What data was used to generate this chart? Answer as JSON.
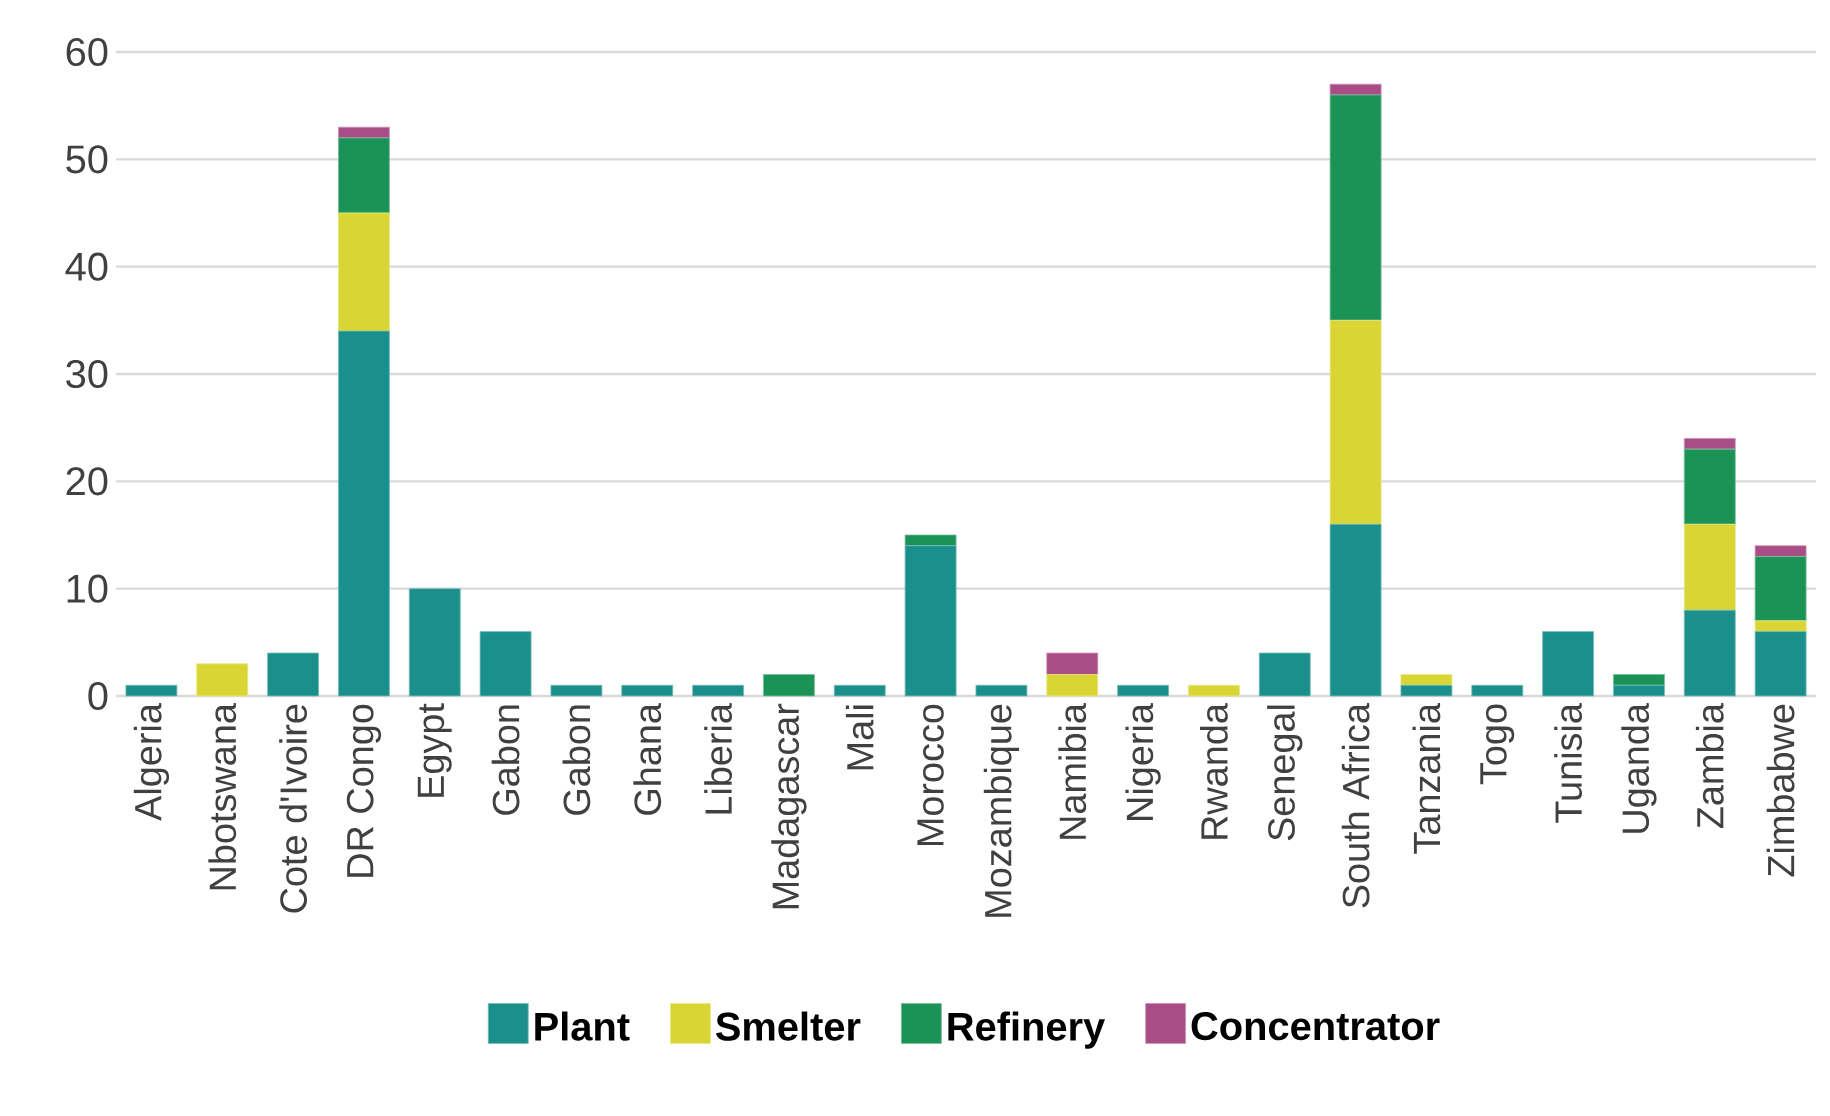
{
  "chart_data": {
    "type": "bar",
    "stacked": true,
    "categories": [
      "Algeria",
      "Nbotswana",
      "Cote d'Ivoire",
      "DR Congo",
      "Egypt",
      "Gabon",
      "Gabon",
      "Ghana",
      "Liberia",
      "Madagascar",
      "Mali",
      "Morocco",
      "Mozambique",
      "Namibia",
      "Nigeria",
      "Rwanda",
      "Senegal",
      "South Africa",
      "Tanzania",
      "Togo",
      "Tunisia",
      "Uganda",
      "Zambia",
      "Zimbabwe"
    ],
    "series": [
      {
        "name": "Plant",
        "color": "#1b8f8b",
        "values": [
          1,
          0,
          4,
          34,
          10,
          6,
          1,
          1,
          1,
          0,
          1,
          14,
          1,
          0,
          1,
          0,
          4,
          16,
          1,
          1,
          6,
          1,
          8,
          6
        ]
      },
      {
        "name": "Smelter",
        "color": "#d8d535",
        "values": [
          0,
          3,
          0,
          11,
          0,
          0,
          0,
          0,
          0,
          0,
          0,
          0,
          0,
          2,
          0,
          1,
          0,
          19,
          1,
          0,
          0,
          0,
          8,
          1
        ]
      },
      {
        "name": "Refinery",
        "color": "#1c9356",
        "values": [
          0,
          0,
          0,
          7,
          0,
          0,
          0,
          0,
          0,
          2,
          0,
          1,
          0,
          0,
          0,
          0,
          0,
          21,
          0,
          0,
          0,
          1,
          7,
          6
        ]
      },
      {
        "name": "Concentrator",
        "color": "#a94d86",
        "values": [
          0,
          0,
          0,
          1,
          0,
          0,
          0,
          0,
          0,
          0,
          0,
          0,
          0,
          2,
          0,
          0,
          0,
          1,
          0,
          0,
          0,
          0,
          1,
          1
        ]
      }
    ],
    "ylim": [
      0,
      60
    ],
    "yticks": [
      0,
      10,
      20,
      30,
      40,
      50,
      60
    ],
    "grid": "y",
    "legend": "bottom"
  }
}
